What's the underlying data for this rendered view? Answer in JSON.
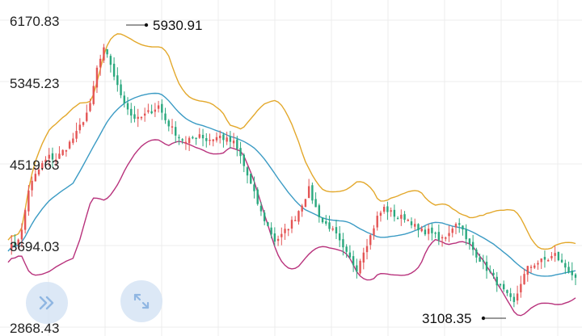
{
  "chart_data": {
    "type": "candlestick",
    "title": "",
    "xlabel": "",
    "ylabel": "",
    "ylim": [
      2868.43,
      6170.83
    ],
    "y_ticks": [
      "6170.83",
      "5345.23",
      "4519.63",
      "3694.03",
      "2868.43"
    ],
    "annotations": {
      "high": {
        "label": "5930.91",
        "value": 5930.91
      },
      "low": {
        "label": "3108.35",
        "value": 3108.35
      }
    },
    "grid": true,
    "indicators": [
      "Bollinger upper band",
      "Bollinger middle band",
      "Bollinger lower band"
    ],
    "close": [
      3720,
      3760,
      3900,
      4350,
      4500,
      4620,
      4700,
      4680,
      4760,
      4850,
      4950,
      5100,
      5250,
      5650,
      5850,
      5700,
      5450,
      5300,
      5150,
      5100,
      5150,
      5200,
      5250,
      5100,
      5000,
      4920,
      4850,
      4900,
      4950,
      4880,
      4900,
      4920,
      4880,
      4850,
      4700,
      4500,
      4300,
      4100,
      3950,
      3800,
      3850,
      3950,
      4050,
      4200,
      4350,
      4150,
      4000,
      3950,
      3850,
      3700,
      3600,
      3500,
      3700,
      3850,
      4050,
      4150,
      4100,
      4050,
      4050,
      4000,
      3900,
      3900,
      3900,
      3800,
      3850,
      3950,
      4000,
      3800,
      3700,
      3600,
      3500,
      3400,
      3300,
      3200,
      3120,
      3350,
      3500,
      3550,
      3580,
      3600,
      3650,
      3550,
      3480,
      3400
    ]
  },
  "colors": {
    "up": "#e45555",
    "down": "#2aa87e",
    "upper_band": "#e3a82b",
    "middle_band": "#3b9bc4",
    "lower_band": "#b8327c",
    "grid": "#ececec",
    "control_bg": "#d6e4f4",
    "control_icon": "#8fb6e2"
  },
  "controls": {
    "expand_icon": "double-chevron-right-icon",
    "fullscreen_icon": "expand-arrows-icon"
  }
}
